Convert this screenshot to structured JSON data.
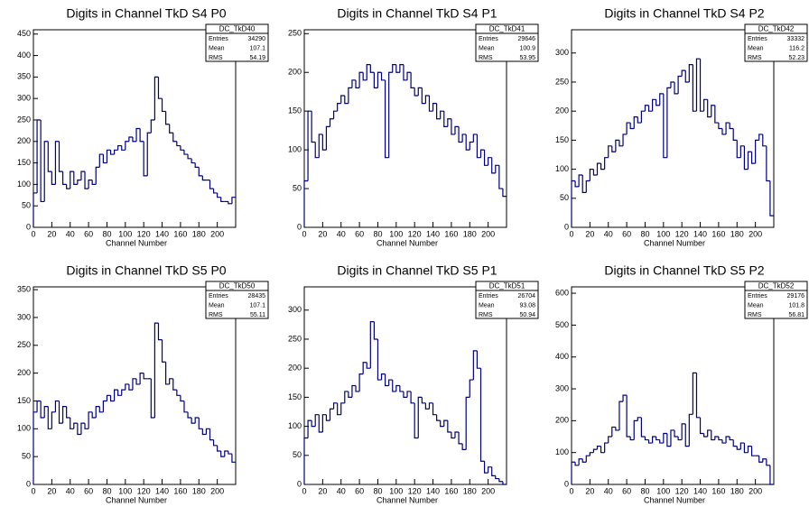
{
  "chart_data": [
    {
      "type": "histogram",
      "title": "Digits in Channel TkD S4 P0",
      "xlabel": "Channel Number",
      "color": "#000080",
      "bins": [
        0,
        4,
        8,
        12,
        16,
        20,
        24,
        28,
        32,
        36,
        40,
        44,
        48,
        52,
        56,
        60,
        64,
        68,
        72,
        76,
        80,
        84,
        88,
        92,
        96,
        100,
        104,
        108,
        112,
        116,
        120,
        124,
        128,
        132,
        136,
        140,
        144,
        148,
        152,
        156,
        160,
        164,
        168,
        172,
        176,
        180,
        184,
        188,
        192,
        196,
        200,
        204,
        208,
        212,
        216,
        220
      ],
      "values": [
        80,
        250,
        60,
        200,
        130,
        100,
        200,
        130,
        100,
        90,
        130,
        100,
        110,
        130,
        90,
        110,
        100,
        140,
        170,
        150,
        180,
        170,
        180,
        190,
        180,
        200,
        210,
        200,
        230,
        200,
        120,
        220,
        250,
        350,
        300,
        270,
        240,
        220,
        200,
        190,
        180,
        170,
        160,
        150,
        140,
        120,
        110,
        110,
        90,
        80,
        70,
        60,
        60,
        55,
        70
      ],
      "xlim": [
        0,
        220
      ],
      "xticks": [
        0,
        20,
        40,
        60,
        80,
        100,
        120,
        140,
        160,
        180,
        200
      ],
      "ylim": [
        0,
        460
      ],
      "yticks": [
        0,
        50,
        100,
        150,
        200,
        250,
        300,
        350,
        400,
        450
      ],
      "stats": {
        "name": "DC_TkD40",
        "rows": [
          {
            "label": "Entries",
            "value": 34290
          },
          {
            "label": "Mean",
            "value": 107.1
          },
          {
            "label": "RMS",
            "value": 54.19
          }
        ]
      }
    },
    {
      "type": "histogram",
      "title": "Digits in Channel TkD S4 P1",
      "xlabel": "Channel Number",
      "color": "#000080",
      "bins": [
        0,
        4,
        8,
        12,
        16,
        20,
        24,
        28,
        32,
        36,
        40,
        44,
        48,
        52,
        56,
        60,
        64,
        68,
        72,
        76,
        80,
        84,
        88,
        92,
        96,
        100,
        104,
        108,
        112,
        116,
        120,
        124,
        128,
        132,
        136,
        140,
        144,
        148,
        152,
        156,
        160,
        164,
        168,
        172,
        176,
        180,
        184,
        188,
        192,
        196,
        200,
        204,
        208,
        212,
        216,
        220
      ],
      "values": [
        60,
        150,
        110,
        90,
        120,
        100,
        130,
        140,
        150,
        160,
        170,
        160,
        180,
        190,
        180,
        200,
        190,
        210,
        200,
        180,
        200,
        190,
        90,
        200,
        210,
        200,
        210,
        190,
        200,
        180,
        170,
        180,
        160,
        170,
        150,
        160,
        140,
        150,
        130,
        140,
        120,
        130,
        110,
        120,
        100,
        110,
        120,
        90,
        100,
        80,
        90,
        70,
        80,
        50,
        40
      ],
      "xlim": [
        0,
        220
      ],
      "xticks": [
        0,
        20,
        40,
        60,
        80,
        100,
        120,
        140,
        160,
        180,
        200
      ],
      "ylim": [
        0,
        255
      ],
      "yticks": [
        0,
        50,
        100,
        150,
        200,
        250
      ],
      "stats": {
        "name": "DC_TkD41",
        "rows": [
          {
            "label": "Entries",
            "value": 29646
          },
          {
            "label": "Mean",
            "value": 100.9
          },
          {
            "label": "RMS",
            "value": 53.95
          }
        ]
      }
    },
    {
      "type": "histogram",
      "title": "Digits in Channel TkD S4 P2",
      "xlabel": "Channel Number",
      "color": "#000080",
      "bins": [
        0,
        4,
        8,
        12,
        16,
        20,
        24,
        28,
        32,
        36,
        40,
        44,
        48,
        52,
        56,
        60,
        64,
        68,
        72,
        76,
        80,
        84,
        88,
        92,
        96,
        100,
        104,
        108,
        112,
        116,
        120,
        124,
        128,
        132,
        136,
        140,
        144,
        148,
        152,
        156,
        160,
        164,
        168,
        172,
        176,
        180,
        184,
        188,
        192,
        196,
        200,
        204,
        208,
        212,
        216,
        220
      ],
      "values": [
        80,
        70,
        90,
        60,
        80,
        100,
        90,
        110,
        100,
        120,
        140,
        130,
        150,
        140,
        160,
        180,
        170,
        190,
        180,
        200,
        210,
        200,
        220,
        210,
        230,
        120,
        240,
        250,
        230,
        260,
        270,
        250,
        280,
        200,
        290,
        200,
        220,
        190,
        210,
        180,
        170,
        160,
        180,
        170,
        150,
        120,
        140,
        100,
        130,
        110,
        150,
        160,
        140,
        80,
        20
      ],
      "xlim": [
        0,
        220
      ],
      "xticks": [
        0,
        20,
        40,
        60,
        80,
        100,
        120,
        140,
        160,
        180,
        200
      ],
      "ylim": [
        0,
        340
      ],
      "yticks": [
        0,
        50,
        100,
        150,
        200,
        250,
        300
      ],
      "stats": {
        "name": "DC_TkD42",
        "rows": [
          {
            "label": "Entries",
            "value": 33332
          },
          {
            "label": "Mean",
            "value": 116.2
          },
          {
            "label": "RMS",
            "value": 52.23
          }
        ]
      }
    },
    {
      "type": "histogram",
      "title": "Digits in Channel TkD S5 P0",
      "xlabel": "Channel Number",
      "color": "#000080",
      "bins": [
        0,
        4,
        8,
        12,
        16,
        20,
        24,
        28,
        32,
        36,
        40,
        44,
        48,
        52,
        56,
        60,
        64,
        68,
        72,
        76,
        80,
        84,
        88,
        92,
        96,
        100,
        104,
        108,
        112,
        116,
        120,
        124,
        128,
        132,
        136,
        140,
        144,
        148,
        152,
        156,
        160,
        164,
        168,
        172,
        176,
        180,
        184,
        188,
        192,
        196,
        200,
        204,
        208,
        212,
        216,
        220
      ],
      "values": [
        130,
        150,
        120,
        140,
        100,
        130,
        150,
        110,
        140,
        120,
        100,
        110,
        90,
        110,
        100,
        130,
        120,
        140,
        130,
        150,
        160,
        150,
        170,
        160,
        170,
        180,
        170,
        190,
        180,
        200,
        190,
        190,
        120,
        290,
        260,
        220,
        180,
        190,
        170,
        160,
        150,
        130,
        120,
        110,
        120,
        100,
        90,
        100,
        80,
        70,
        60,
        50,
        60,
        55,
        40
      ],
      "xlim": [
        0,
        220
      ],
      "xticks": [
        0,
        20,
        40,
        60,
        80,
        100,
        120,
        140,
        160,
        180,
        200
      ],
      "ylim": [
        0,
        355
      ],
      "yticks": [
        0,
        50,
        100,
        150,
        200,
        250,
        300,
        350
      ],
      "stats": {
        "name": "DC_TkD50",
        "rows": [
          {
            "label": "Entries",
            "value": 28435
          },
          {
            "label": "Mean",
            "value": 107.1
          },
          {
            "label": "RMS",
            "value": 55.11
          }
        ]
      }
    },
    {
      "type": "histogram",
      "title": "Digits in Channel TkD S5 P1",
      "xlabel": "Channel Number",
      "color": "#000080",
      "bins": [
        0,
        4,
        8,
        12,
        16,
        20,
        24,
        28,
        32,
        36,
        40,
        44,
        48,
        52,
        56,
        60,
        64,
        68,
        72,
        76,
        80,
        84,
        88,
        92,
        96,
        100,
        104,
        108,
        112,
        116,
        120,
        124,
        128,
        132,
        136,
        140,
        144,
        148,
        152,
        156,
        160,
        164,
        168,
        172,
        176,
        180,
        184,
        188,
        192,
        196,
        200,
        204,
        208,
        212,
        216,
        220
      ],
      "values": [
        80,
        110,
        100,
        120,
        90,
        120,
        110,
        130,
        140,
        120,
        140,
        160,
        150,
        170,
        160,
        190,
        210,
        200,
        280,
        250,
        180,
        190,
        170,
        180,
        160,
        170,
        160,
        150,
        160,
        140,
        80,
        150,
        140,
        130,
        140,
        120,
        110,
        100,
        110,
        90,
        80,
        90,
        70,
        60,
        150,
        180,
        230,
        200,
        40,
        20,
        30,
        15,
        10,
        5,
        0
      ],
      "xlim": [
        0,
        220
      ],
      "xticks": [
        0,
        20,
        40,
        60,
        80,
        100,
        120,
        140,
        160,
        180,
        200
      ],
      "ylim": [
        0,
        340
      ],
      "yticks": [
        0,
        50,
        100,
        150,
        200,
        250,
        300
      ],
      "stats": {
        "name": "DC_TkD51",
        "rows": [
          {
            "label": "Entries",
            "value": 26704
          },
          {
            "label": "Mean",
            "value": 93.08
          },
          {
            "label": "RMS",
            "value": 50.94
          }
        ]
      }
    },
    {
      "type": "histogram",
      "title": "Digits in Channel TkD S5 P2",
      "xlabel": "Channel Number",
      "color": "#000080",
      "bins": [
        0,
        4,
        8,
        12,
        16,
        20,
        24,
        28,
        32,
        36,
        40,
        44,
        48,
        52,
        56,
        60,
        64,
        68,
        72,
        76,
        80,
        84,
        88,
        92,
        96,
        100,
        104,
        108,
        112,
        116,
        120,
        124,
        128,
        132,
        136,
        140,
        144,
        148,
        152,
        156,
        160,
        164,
        168,
        172,
        176,
        180,
        184,
        188,
        192,
        196,
        200,
        204,
        208,
        212,
        216,
        220
      ],
      "values": [
        70,
        60,
        80,
        70,
        90,
        100,
        110,
        120,
        100,
        130,
        150,
        180,
        170,
        260,
        280,
        150,
        140,
        200,
        210,
        150,
        140,
        130,
        150,
        140,
        130,
        160,
        120,
        170,
        150,
        140,
        190,
        120,
        220,
        350,
        210,
        160,
        150,
        170,
        140,
        150,
        140,
        130,
        150,
        140,
        120,
        110,
        130,
        100,
        120,
        90,
        90,
        70,
        80,
        60,
        0
      ],
      "xlim": [
        0,
        220
      ],
      "xticks": [
        0,
        20,
        40,
        60,
        80,
        100,
        120,
        140,
        160,
        180,
        200
      ],
      "ylim": [
        0,
        620
      ],
      "yticks": [
        0,
        100,
        200,
        300,
        400,
        500,
        600
      ],
      "stats": {
        "name": "DC_TkD52",
        "rows": [
          {
            "label": "Entries",
            "value": 29176
          },
          {
            "label": "Mean",
            "value": 101.8
          },
          {
            "label": "RMS",
            "value": 56.81
          }
        ]
      }
    }
  ]
}
